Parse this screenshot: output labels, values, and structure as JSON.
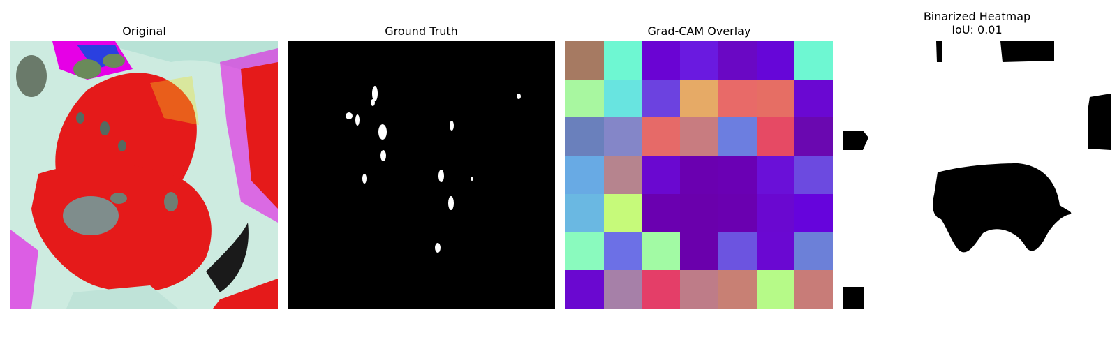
{
  "panels": {
    "original": {
      "title": "Original"
    },
    "ground_truth": {
      "title": "Ground Truth"
    },
    "gradcam": {
      "title": "Grad-CAM Overlay",
      "cells": [
        [
          "#a67a62",
          "#6ef7d2",
          "#6a04d3",
          "#6a1ae0",
          "#6a08c4",
          "#6606d8",
          "#6ef7d2"
        ],
        [
          "#a8f7a0",
          "#68e4e0",
          "#6c42e0",
          "#e6aa66",
          "#e86a68",
          "#e66e64",
          "#6a08d2"
        ],
        [
          "#6a80bc",
          "#8486c8",
          "#e66a68",
          "#c87c80",
          "#6c7ee0",
          "#e64a64",
          "#6a08b0"
        ],
        [
          "#68aae4",
          "#b6848e",
          "#6a08d0",
          "#6a00b0",
          "#6a00b4",
          "#6a10d8",
          "#6c4ae0"
        ],
        [
          "#6ab8e2",
          "#c6fa7a",
          "#6a00b0",
          "#6a00ac",
          "#6a00b0",
          "#6a08d0",
          "#6604dc"
        ],
        [
          "#8afabe",
          "#6c70e6",
          "#a2faa4",
          "#6a00ac",
          "#6c54e0",
          "#6a08d2",
          "#6c80d8"
        ],
        [
          "#6a08d0",
          "#a680a8",
          "#e43e68",
          "#be7c88",
          "#c88074",
          "#b6fa88",
          "#c87c78"
        ]
      ]
    },
    "binarized": {
      "title": "Binarized Heatmap\nIoU: 0.01",
      "iou": 0.01
    }
  }
}
